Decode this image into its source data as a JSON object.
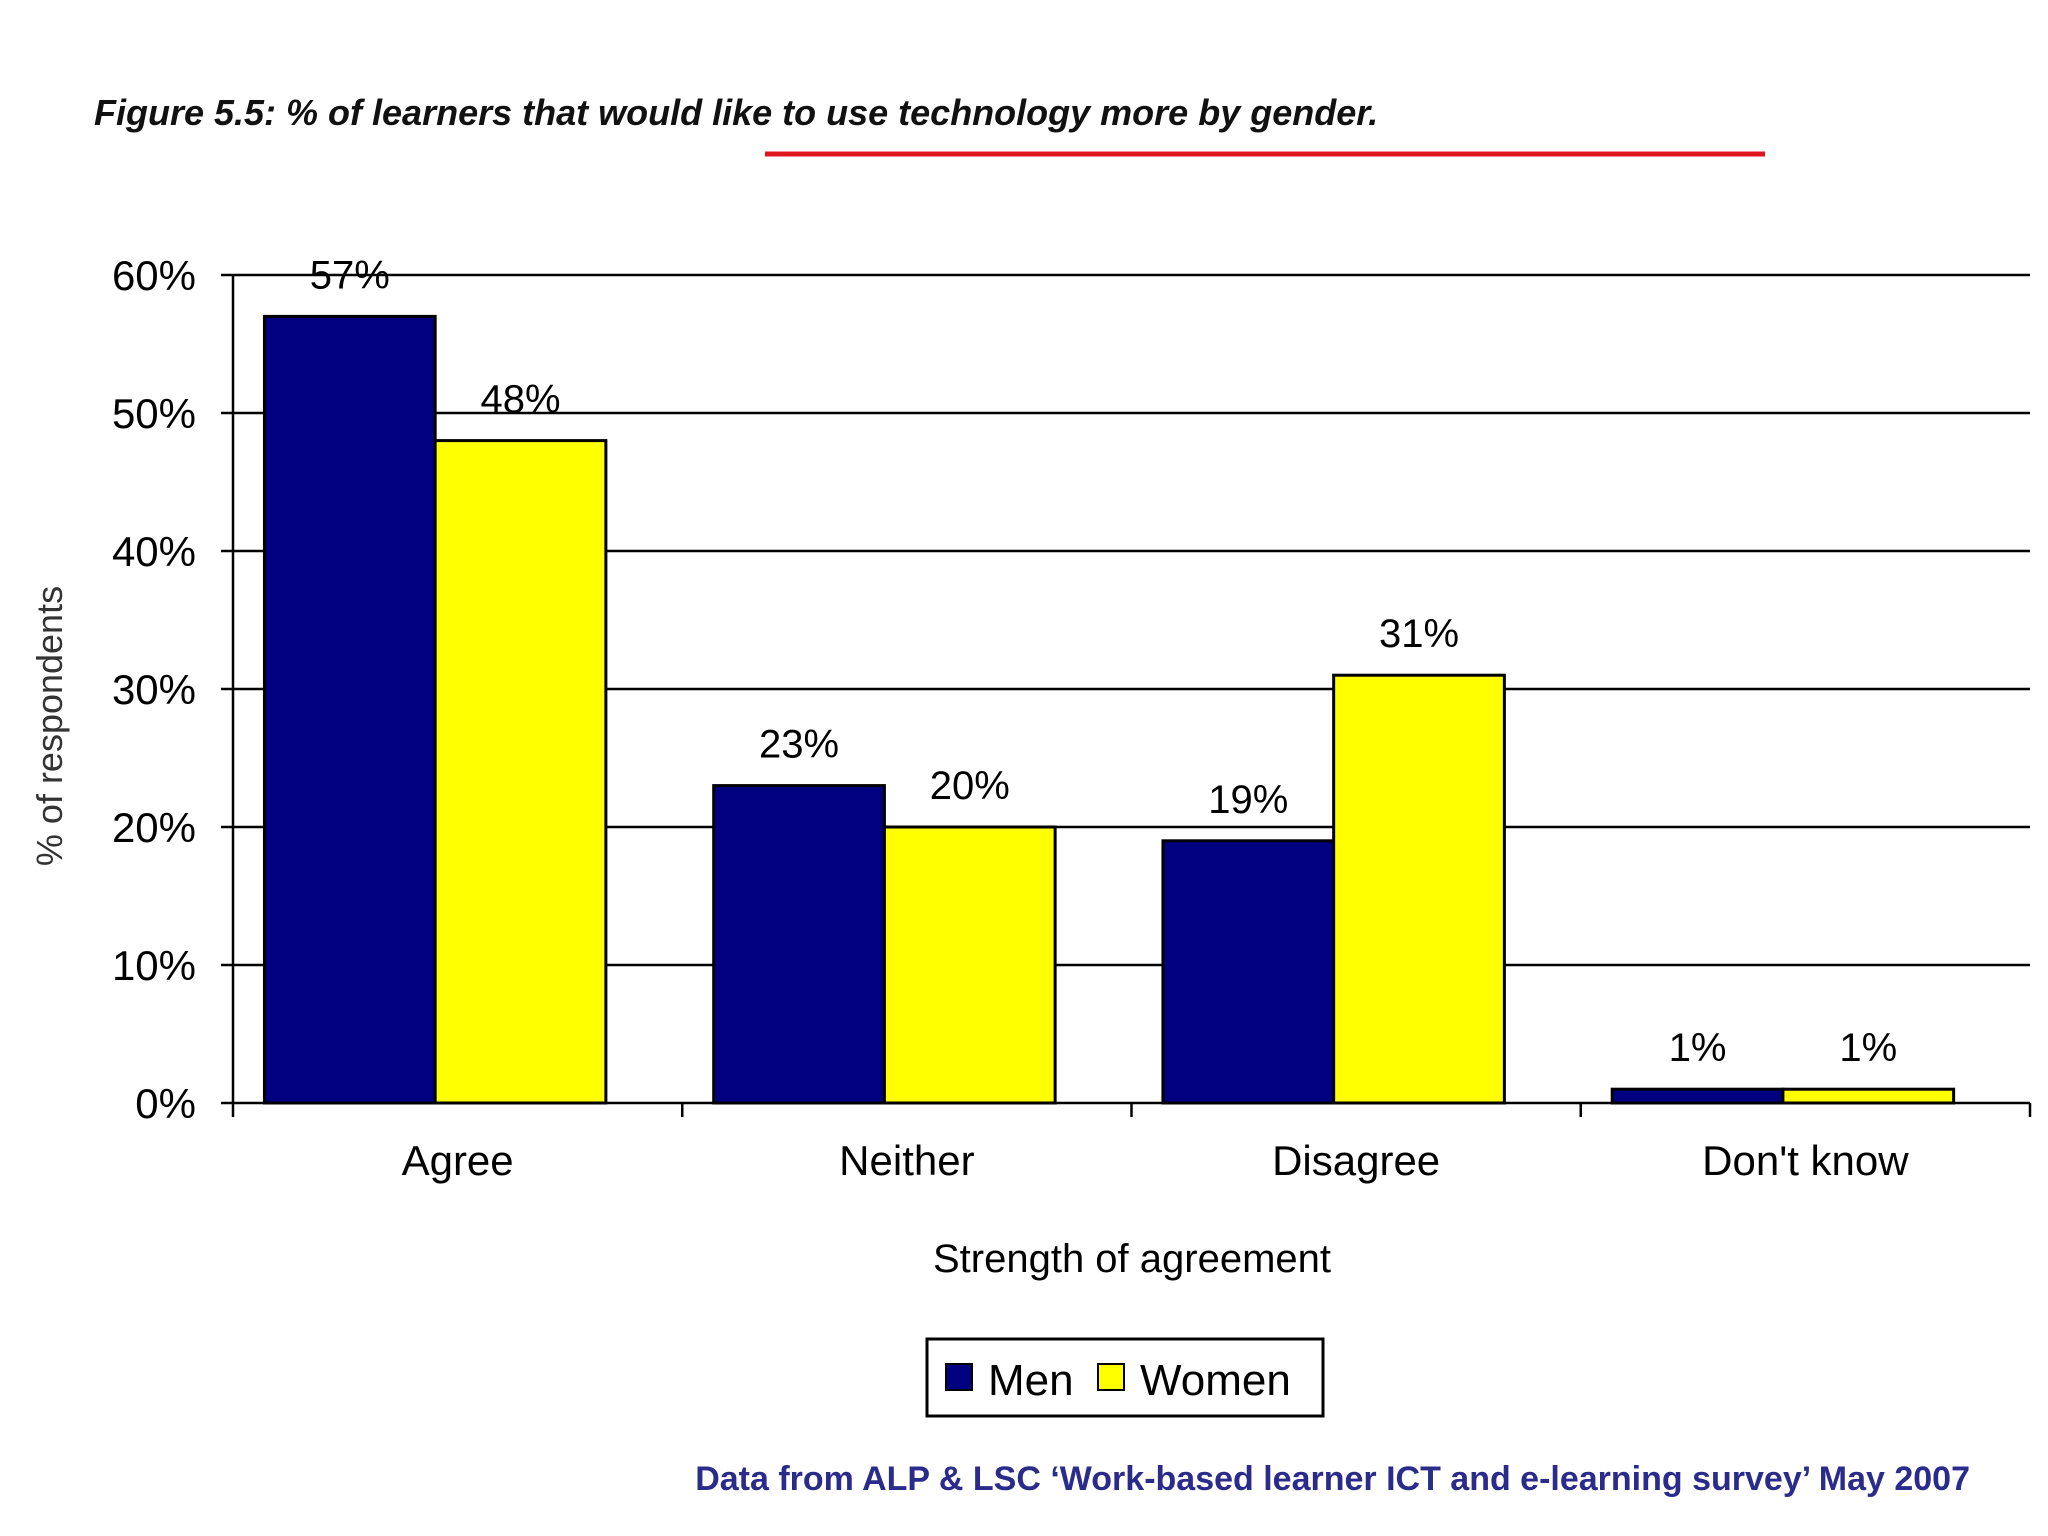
{
  "colors": {
    "men": "#000080",
    "women": "#ffff00",
    "underline": "#e0141e",
    "source": "#2b2b8c"
  },
  "chart_data": {
    "type": "bar",
    "title": "Figure 5.5: % of learners that would like to use technology more by gender.",
    "xlabel": "Strength of agreement",
    "ylabel": "% of respondents",
    "ylim": [
      0,
      60
    ],
    "yticks": [
      "0%",
      "10%",
      "20%",
      "30%",
      "40%",
      "50%",
      "60%"
    ],
    "categories": [
      "Agree",
      "Neither",
      "Disagree",
      "Don't know"
    ],
    "series": [
      {
        "name": "Men",
        "values": [
          57,
          23,
          19,
          1
        ],
        "labels": [
          "57%",
          "23%",
          "19%",
          "1%"
        ]
      },
      {
        "name": "Women",
        "values": [
          48,
          20,
          31,
          1
        ],
        "labels": [
          "48%",
          "20%",
          "31%",
          "1%"
        ]
      }
    ],
    "grid": true,
    "legend": "bottom"
  },
  "source": "Data from ALP & LSC ‘Work-based learner ICT and e-learning survey’ May 2007"
}
